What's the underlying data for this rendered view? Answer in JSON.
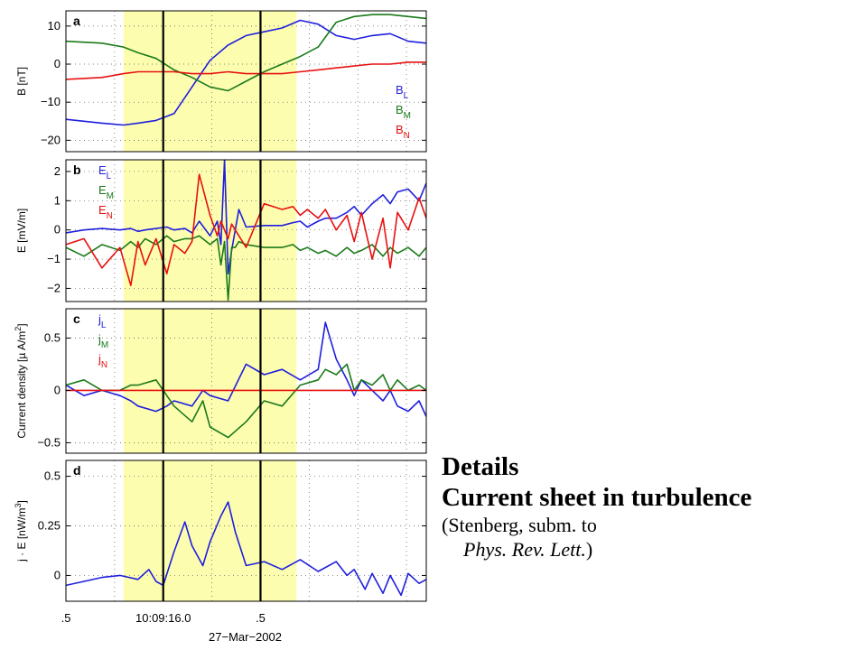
{
  "caption": {
    "heading1": "Details",
    "heading2": "Current sheet in turbulence",
    "line1": "(Stenberg, subm. to",
    "line2_italic": "Phys. Rev. Lett.",
    "line2_close": ")"
  },
  "chart_data": [
    {
      "type": "line",
      "panel_label": "a",
      "ylabel": "B [nT]",
      "ylim": [
        -23,
        14
      ],
      "yticks": [
        {
          "v": 10,
          "t": "10"
        },
        {
          "v": 0,
          "t": "0"
        },
        {
          "v": -10,
          "t": "−10"
        },
        {
          "v": -20,
          "t": "−20"
        }
      ],
      "x": [
        0,
        0.1,
        0.16,
        0.2,
        0.25,
        0.3,
        0.35,
        0.4,
        0.45,
        0.5,
        0.55,
        0.6,
        0.65,
        0.7,
        0.75,
        0.8,
        0.85,
        0.9,
        0.95,
        1.0
      ],
      "series": [
        {
          "name": "BL",
          "label_main": "B",
          "label_sub": "L",
          "color": "#1f1fdd",
          "values": [
            -14.5,
            -15.5,
            -16.0,
            -15.5,
            -14.8,
            -13.0,
            -6.0,
            1.0,
            5.0,
            7.5,
            8.5,
            9.5,
            11.5,
            10.5,
            7.5,
            6.5,
            7.5,
            8.0,
            6.0,
            5.5
          ]
        },
        {
          "name": "BM",
          "label_main": "B",
          "label_sub": "M",
          "color": "#1a7a1a",
          "values": [
            6.0,
            5.5,
            4.5,
            3.0,
            1.5,
            -1.5,
            -3.5,
            -6.0,
            -7.0,
            -4.5,
            -2.0,
            0.0,
            2.0,
            4.5,
            11.0,
            12.5,
            13.0,
            13.0,
            12.5,
            12.0
          ]
        },
        {
          "name": "BN",
          "label_main": "B",
          "label_sub": "N",
          "color": "#e81010",
          "values": [
            -4.0,
            -3.5,
            -2.5,
            -2.0,
            -2.0,
            -2.0,
            -2.5,
            -2.5,
            -2.0,
            -2.5,
            -2.5,
            -2.5,
            -2.0,
            -1.5,
            -1.0,
            -0.5,
            0.0,
            0.0,
            0.5,
            0.5
          ]
        }
      ]
    },
    {
      "type": "line",
      "panel_label": "b",
      "ylabel": "E [mV/m]",
      "ylim": [
        -2.45,
        2.4
      ],
      "yticks": [
        {
          "v": 2,
          "t": "2"
        },
        {
          "v": 1,
          "t": "1"
        },
        {
          "v": 0,
          "t": "0"
        },
        {
          "v": -1,
          "t": "−1"
        },
        {
          "v": -2,
          "t": "−2"
        }
      ],
      "x": [
        0,
        0.05,
        0.1,
        0.15,
        0.18,
        0.2,
        0.22,
        0.25,
        0.28,
        0.3,
        0.33,
        0.35,
        0.37,
        0.4,
        0.42,
        0.43,
        0.44,
        0.45,
        0.46,
        0.47,
        0.48,
        0.5,
        0.55,
        0.6,
        0.63,
        0.65,
        0.67,
        0.7,
        0.72,
        0.75,
        0.78,
        0.8,
        0.82,
        0.85,
        0.88,
        0.9,
        0.92,
        0.95,
        0.98,
        1.0
      ],
      "series": [
        {
          "name": "EL",
          "label_main": "E",
          "label_sub": "L",
          "color": "#1f1fdd",
          "values": [
            -0.1,
            0.0,
            0.05,
            0.0,
            0.05,
            -0.05,
            0.0,
            0.05,
            0.1,
            0.0,
            0.05,
            -0.1,
            0.3,
            -0.2,
            0.3,
            -0.5,
            2.4,
            -1.5,
            -0.7,
            0.0,
            0.7,
            0.1,
            0.15,
            0.15,
            0.25,
            0.3,
            0.1,
            0.3,
            0.4,
            0.4,
            0.6,
            0.8,
            0.5,
            0.9,
            1.2,
            0.9,
            1.3,
            1.4,
            1.0,
            1.6
          ]
        },
        {
          "name": "EM",
          "label_main": "E",
          "label_sub": "M",
          "color": "#1a7a1a",
          "values": [
            -0.6,
            -0.9,
            -0.5,
            -0.7,
            -0.4,
            -0.6,
            -0.3,
            -0.5,
            -0.2,
            -0.4,
            -0.3,
            -0.3,
            -0.2,
            -0.5,
            -0.3,
            -1.2,
            -0.4,
            -2.4,
            -0.6,
            -0.6,
            -0.4,
            -0.5,
            -0.6,
            -0.6,
            -0.5,
            -0.7,
            -0.6,
            -0.8,
            -0.7,
            -0.9,
            -0.6,
            -0.8,
            -0.7,
            -0.5,
            -0.9,
            -0.6,
            -0.8,
            -0.6,
            -0.9,
            -0.6
          ]
        },
        {
          "name": "EN",
          "label_main": "E",
          "label_sub": "N",
          "color": "#e81010",
          "values": [
            -0.5,
            -0.3,
            -1.3,
            -0.6,
            -1.9,
            -0.4,
            -1.2,
            -0.3,
            -1.5,
            -0.5,
            -0.8,
            -0.4,
            1.9,
            0.5,
            -0.2,
            0.3,
            0.0,
            -0.3,
            0.2,
            0.0,
            -0.2,
            -0.6,
            0.9,
            0.7,
            0.8,
            0.5,
            0.7,
            0.4,
            0.7,
            0.0,
            0.5,
            -0.4,
            0.6,
            -1.0,
            0.4,
            -1.3,
            0.6,
            0.0,
            1.1,
            0.4
          ]
        }
      ]
    },
    {
      "type": "line",
      "panel_label": "c",
      "ylabel": "Current density [µ A/m²]",
      "ylabel_main": "Current density [µ A/m",
      "ylabel_sup": "2",
      "ylabel_close": "]",
      "ylim": [
        -0.6,
        0.78
      ],
      "yticks": [
        {
          "v": 0.5,
          "t": "0.5"
        },
        {
          "v": 0,
          "t": "0"
        },
        {
          "v": -0.5,
          "t": "−0.5"
        }
      ],
      "x": [
        0,
        0.05,
        0.1,
        0.15,
        0.18,
        0.2,
        0.25,
        0.28,
        0.3,
        0.35,
        0.38,
        0.4,
        0.45,
        0.5,
        0.55,
        0.6,
        0.65,
        0.7,
        0.72,
        0.75,
        0.78,
        0.8,
        0.82,
        0.85,
        0.88,
        0.9,
        0.92,
        0.95,
        0.98,
        1.0
      ],
      "series": [
        {
          "name": "jL",
          "label_main": "j",
          "label_sub": "L",
          "color": "#1f1fdd",
          "values": [
            0.05,
            -0.05,
            0.0,
            -0.05,
            -0.1,
            -0.15,
            -0.2,
            -0.15,
            -0.1,
            -0.15,
            0.0,
            -0.05,
            -0.1,
            0.25,
            0.15,
            0.2,
            0.1,
            0.2,
            0.65,
            0.3,
            0.1,
            -0.05,
            0.1,
            0.0,
            -0.1,
            0.0,
            -0.15,
            -0.2,
            -0.1,
            -0.25
          ]
        },
        {
          "name": "jM",
          "label_main": "j",
          "label_sub": "M",
          "color": "#1a7a1a",
          "values": [
            0.05,
            0.1,
            0.0,
            0.0,
            0.05,
            0.05,
            0.1,
            -0.05,
            -0.15,
            -0.3,
            -0.1,
            -0.35,
            -0.45,
            -0.3,
            -0.1,
            -0.15,
            0.05,
            0.1,
            0.2,
            0.15,
            0.25,
            0.0,
            0.1,
            0.05,
            0.15,
            0.0,
            0.1,
            0.0,
            0.05,
            0.0
          ]
        },
        {
          "name": "jN",
          "label_main": "j",
          "label_sub": "N",
          "color": "#e81010",
          "values": [
            0.0,
            0.0,
            0.0,
            0.0,
            0.0,
            0.0,
            0.0,
            0.0,
            0.0,
            0.0,
            0.0,
            0.0,
            0.0,
            0.0,
            0.0,
            0.0,
            0.0,
            0.0,
            0.0,
            0.0,
            0.0,
            0.0,
            0.0,
            0.0,
            0.0,
            0.0,
            0.0,
            0.0,
            0.0,
            0.0
          ]
        }
      ]
    },
    {
      "type": "line",
      "panel_label": "d",
      "ylabel": "j · E  [nW/m³]",
      "ylabel_main": "j · E  [nW/m",
      "ylabel_sup": "3",
      "ylabel_close": "]",
      "ylim": [
        -0.13,
        0.58
      ],
      "yticks": [
        {
          "v": 0.5,
          "t": "0.5"
        },
        {
          "v": 0.25,
          "t": "0.25"
        },
        {
          "v": 0,
          "t": "0"
        }
      ],
      "x": [
        0,
        0.05,
        0.1,
        0.15,
        0.2,
        0.23,
        0.25,
        0.27,
        0.3,
        0.33,
        0.35,
        0.38,
        0.4,
        0.43,
        0.45,
        0.47,
        0.5,
        0.55,
        0.6,
        0.65,
        0.7,
        0.75,
        0.78,
        0.8,
        0.83,
        0.85,
        0.88,
        0.9,
        0.93,
        0.95,
        0.98,
        1.0
      ],
      "series": [
        {
          "name": "j·E",
          "color": "#1f1fdd",
          "values": [
            -0.05,
            -0.03,
            -0.01,
            0.0,
            -0.02,
            0.03,
            -0.03,
            -0.05,
            0.12,
            0.27,
            0.15,
            0.05,
            0.17,
            0.3,
            0.37,
            0.22,
            0.05,
            0.07,
            0.03,
            0.08,
            0.02,
            0.07,
            0.0,
            0.03,
            -0.07,
            0.01,
            -0.09,
            0.0,
            -0.1,
            0.01,
            -0.04,
            -0.02
          ]
        }
      ]
    }
  ],
  "x_axis": {
    "xlabel": "27−Mar−2002",
    "ticks": [
      {
        "x": 0.0,
        "t": ".5"
      },
      {
        "x": 0.27,
        "t": "10:09:16.0"
      },
      {
        "x": 0.54,
        "t": ".5"
      }
    ]
  },
  "shaded_interval": {
    "x_start": 0.16,
    "x_end": 0.64,
    "color": "#fdfdb0"
  },
  "vertical_markers": [
    0.27,
    0.54
  ],
  "grid": "dotted"
}
